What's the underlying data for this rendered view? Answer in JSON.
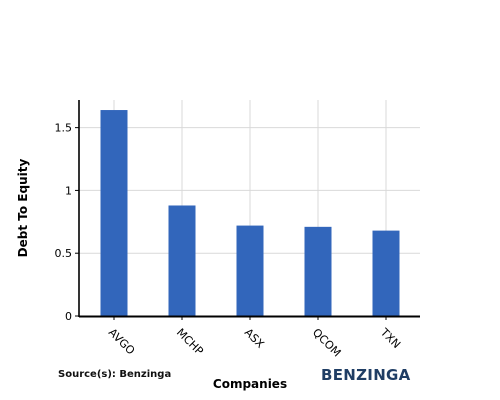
{
  "chart_data": {
    "type": "bar",
    "categories": [
      "AVGO",
      "MCHP",
      "ASX",
      "QCOM",
      "TXN"
    ],
    "values": [
      1.64,
      0.88,
      0.72,
      0.71,
      0.68
    ],
    "xlabel": "Companies",
    "ylabel": "Debt To Equity",
    "ylim": [
      0,
      1.72
    ],
    "yticks": [
      0,
      0.5,
      1,
      1.5
    ],
    "ytick_labels": [
      "0",
      "0.5",
      "1",
      "1.5"
    ],
    "grid": true,
    "bar_color": "#3266bb"
  },
  "footer": {
    "source": "Source(s): Benzinga",
    "logo": "BENZINGA"
  }
}
